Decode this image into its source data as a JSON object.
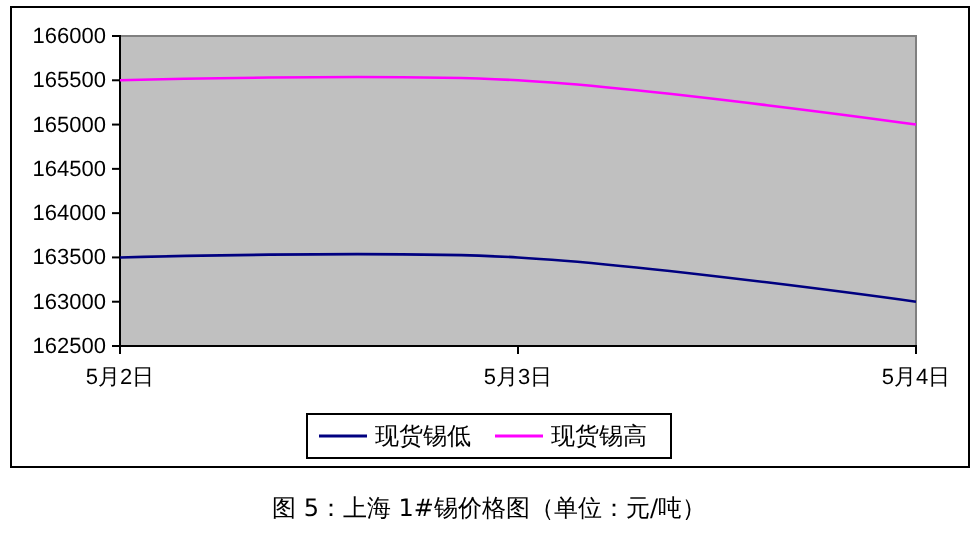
{
  "chart_data": {
    "type": "line",
    "categories": [
      "5月2日",
      "5月3日",
      "5月4日"
    ],
    "series": [
      {
        "name": "现货锡低",
        "color": "#000080",
        "values": [
          163500,
          163500,
          163000
        ]
      },
      {
        "name": "现货锡高",
        "color": "#ff00ff",
        "values": [
          165500,
          165500,
          165000
        ]
      }
    ],
    "ylim": [
      162500,
      166000
    ],
    "yticks": [
      162500,
      163000,
      163500,
      164000,
      164500,
      165000,
      165500,
      166000
    ],
    "grid": false,
    "legend": "bottom",
    "marker": "none",
    "line_style": "solid",
    "annotations": [
      "图 5：上海 1#锡价格图（单位：元/吨）"
    ]
  }
}
